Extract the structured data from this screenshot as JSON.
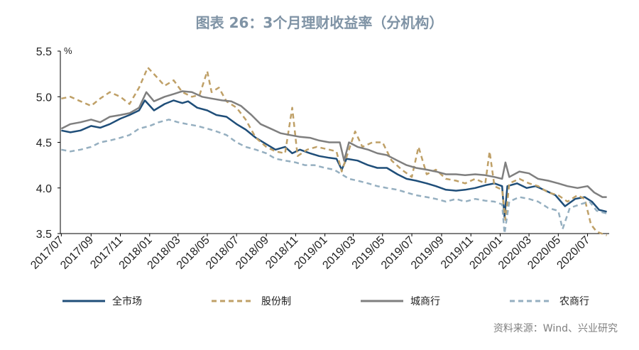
{
  "chart_data": {
    "type": "line",
    "title": "图表 26：3个月理财收益率（分机构）",
    "ylabel": "%",
    "ylim": [
      3.5,
      5.5
    ],
    "yticks": [
      "3.5",
      "4.0",
      "4.5",
      "5.0",
      "5.5"
    ],
    "xlim": [
      "2017-06-29",
      "2020-08-15"
    ],
    "xticks": [
      "2017/07",
      "2017/09",
      "2017/11",
      "2018/01",
      "2018/03",
      "2018/05",
      "2018/07",
      "2018/09",
      "2018/11",
      "2019/01",
      "2019/03",
      "2019/05",
      "2019/07",
      "2019/09",
      "2019/11",
      "2020/01",
      "2020/03",
      "2020/05",
      "2020/07"
    ],
    "grid": false,
    "legend_position": "bottom",
    "series": [
      {
        "name": "全市场",
        "color": "#1f4e79",
        "style": "solid",
        "points": [
          [
            "2017-07-01",
            4.63
          ],
          [
            "2017-07-20",
            4.61
          ],
          [
            "2017-08-10",
            4.63
          ],
          [
            "2017-09-01",
            4.68
          ],
          [
            "2017-09-20",
            4.66
          ],
          [
            "2017-10-10",
            4.7
          ],
          [
            "2017-11-01",
            4.76
          ],
          [
            "2017-11-20",
            4.8
          ],
          [
            "2017-12-10",
            4.85
          ],
          [
            "2017-12-22",
            4.96
          ],
          [
            "2018-01-10",
            4.85
          ],
          [
            "2018-02-01",
            4.92
          ],
          [
            "2018-02-20",
            4.96
          ],
          [
            "2018-03-10",
            4.93
          ],
          [
            "2018-03-22",
            4.95
          ],
          [
            "2018-04-10",
            4.88
          ],
          [
            "2018-05-01",
            4.85
          ],
          [
            "2018-05-20",
            4.8
          ],
          [
            "2018-06-10",
            4.78
          ],
          [
            "2018-07-01",
            4.7
          ],
          [
            "2018-07-20",
            4.64
          ],
          [
            "2018-08-10",
            4.55
          ],
          [
            "2018-09-01",
            4.48
          ],
          [
            "2018-09-20",
            4.42
          ],
          [
            "2018-10-10",
            4.45
          ],
          [
            "2018-10-25",
            4.38
          ],
          [
            "2018-11-10",
            4.42
          ],
          [
            "2018-12-01",
            4.38
          ],
          [
            "2018-12-20",
            4.35
          ],
          [
            "2019-01-10",
            4.33
          ],
          [
            "2019-01-25",
            4.32
          ],
          [
            "2019-02-05",
            4.2
          ],
          [
            "2019-02-15",
            4.32
          ],
          [
            "2019-03-10",
            4.3
          ],
          [
            "2019-04-01",
            4.25
          ],
          [
            "2019-04-20",
            4.22
          ],
          [
            "2019-05-10",
            4.22
          ],
          [
            "2019-06-01",
            4.15
          ],
          [
            "2019-06-20",
            4.1
          ],
          [
            "2019-07-10",
            4.08
          ],
          [
            "2019-08-01",
            4.05
          ],
          [
            "2019-08-20",
            4.02
          ],
          [
            "2019-09-10",
            3.98
          ],
          [
            "2019-10-01",
            3.97
          ],
          [
            "2019-10-20",
            3.98
          ],
          [
            "2019-11-10",
            4.0
          ],
          [
            "2019-12-01",
            4.03
          ],
          [
            "2019-12-20",
            4.05
          ],
          [
            "2020-01-05",
            4.02
          ],
          [
            "2020-01-10",
            3.68
          ],
          [
            "2020-01-16",
            4.02
          ],
          [
            "2020-02-05",
            4.05
          ],
          [
            "2020-02-25",
            4.0
          ],
          [
            "2020-03-15",
            4.02
          ],
          [
            "2020-04-05",
            3.97
          ],
          [
            "2020-04-25",
            3.92
          ],
          [
            "2020-05-15",
            3.8
          ],
          [
            "2020-06-05",
            3.88
          ],
          [
            "2020-06-25",
            3.9
          ],
          [
            "2020-07-10",
            3.85
          ],
          [
            "2020-07-25",
            3.76
          ],
          [
            "2020-08-10",
            3.74
          ]
        ]
      },
      {
        "name": "股份制",
        "color": "#bfa067",
        "style": "dashed",
        "points": [
          [
            "2017-07-01",
            4.98
          ],
          [
            "2017-07-20",
            5.0
          ],
          [
            "2017-08-10",
            4.95
          ],
          [
            "2017-09-01",
            4.9
          ],
          [
            "2017-09-20",
            4.98
          ],
          [
            "2017-10-10",
            5.05
          ],
          [
            "2017-11-01",
            5.0
          ],
          [
            "2017-11-20",
            4.92
          ],
          [
            "2017-12-10",
            5.1
          ],
          [
            "2017-12-28",
            5.32
          ],
          [
            "2018-01-15",
            5.22
          ],
          [
            "2018-02-01",
            5.12
          ],
          [
            "2018-02-20",
            5.18
          ],
          [
            "2018-03-10",
            5.05
          ],
          [
            "2018-03-30",
            5.0
          ],
          [
            "2018-04-15",
            5.02
          ],
          [
            "2018-05-01",
            5.28
          ],
          [
            "2018-05-10",
            5.05
          ],
          [
            "2018-05-25",
            5.1
          ],
          [
            "2018-06-10",
            4.95
          ],
          [
            "2018-07-01",
            4.88
          ],
          [
            "2018-07-20",
            4.75
          ],
          [
            "2018-08-10",
            4.55
          ],
          [
            "2018-09-01",
            4.45
          ],
          [
            "2018-09-20",
            4.4
          ],
          [
            "2018-10-10",
            4.38
          ],
          [
            "2018-10-25",
            4.88
          ],
          [
            "2018-11-05",
            4.35
          ],
          [
            "2018-11-25",
            4.42
          ],
          [
            "2018-12-15",
            4.45
          ],
          [
            "2019-01-10",
            4.42
          ],
          [
            "2019-01-25",
            4.4
          ],
          [
            "2019-02-05",
            4.18
          ],
          [
            "2019-02-20",
            4.42
          ],
          [
            "2019-03-05",
            4.62
          ],
          [
            "2019-03-20",
            4.45
          ],
          [
            "2019-04-10",
            4.5
          ],
          [
            "2019-05-01",
            4.5
          ],
          [
            "2019-05-20",
            4.3
          ],
          [
            "2019-06-10",
            4.2
          ],
          [
            "2019-07-01",
            4.12
          ],
          [
            "2019-07-15",
            4.45
          ],
          [
            "2019-08-01",
            4.15
          ],
          [
            "2019-08-20",
            4.2
          ],
          [
            "2019-09-10",
            4.1
          ],
          [
            "2019-10-01",
            4.08
          ],
          [
            "2019-10-20",
            4.05
          ],
          [
            "2019-11-10",
            4.1
          ],
          [
            "2019-12-01",
            4.05
          ],
          [
            "2019-12-10",
            4.4
          ],
          [
            "2019-12-20",
            4.02
          ],
          [
            "2020-01-05",
            3.98
          ],
          [
            "2020-01-12",
            3.65
          ],
          [
            "2020-01-20",
            4.05
          ],
          [
            "2020-02-10",
            4.1
          ],
          [
            "2020-03-01",
            4.05
          ],
          [
            "2020-03-20",
            4.02
          ],
          [
            "2020-04-10",
            3.95
          ],
          [
            "2020-05-01",
            3.92
          ],
          [
            "2020-05-20",
            3.85
          ],
          [
            "2020-06-10",
            3.92
          ],
          [
            "2020-06-25",
            3.88
          ],
          [
            "2020-07-08",
            3.6
          ],
          [
            "2020-07-20",
            3.52
          ],
          [
            "2020-08-10",
            3.48
          ]
        ]
      },
      {
        "name": "城商行",
        "color": "#7f7f7f",
        "style": "solid",
        "points": [
          [
            "2017-07-01",
            4.65
          ],
          [
            "2017-07-20",
            4.7
          ],
          [
            "2017-08-10",
            4.72
          ],
          [
            "2017-09-01",
            4.75
          ],
          [
            "2017-09-20",
            4.72
          ],
          [
            "2017-10-10",
            4.78
          ],
          [
            "2017-11-01",
            4.8
          ],
          [
            "2017-11-20",
            4.82
          ],
          [
            "2017-12-10",
            4.88
          ],
          [
            "2017-12-25",
            5.05
          ],
          [
            "2018-01-10",
            4.95
          ],
          [
            "2018-02-01",
            5.0
          ],
          [
            "2018-02-20",
            5.03
          ],
          [
            "2018-03-10",
            5.06
          ],
          [
            "2018-03-30",
            5.05
          ],
          [
            "2018-04-20",
            5.0
          ],
          [
            "2018-05-10",
            4.98
          ],
          [
            "2018-06-01",
            4.96
          ],
          [
            "2018-06-20",
            4.95
          ],
          [
            "2018-07-10",
            4.9
          ],
          [
            "2018-08-01",
            4.8
          ],
          [
            "2018-08-20",
            4.7
          ],
          [
            "2018-09-10",
            4.65
          ],
          [
            "2018-10-01",
            4.6
          ],
          [
            "2018-10-20",
            4.58
          ],
          [
            "2018-11-10",
            4.56
          ],
          [
            "2018-12-01",
            4.55
          ],
          [
            "2018-12-20",
            4.52
          ],
          [
            "2019-01-10",
            4.5
          ],
          [
            "2019-02-01",
            4.5
          ],
          [
            "2019-02-10",
            4.3
          ],
          [
            "2019-02-20",
            4.5
          ],
          [
            "2019-03-10",
            4.45
          ],
          [
            "2019-04-01",
            4.42
          ],
          [
            "2019-04-20",
            4.38
          ],
          [
            "2019-05-10",
            4.36
          ],
          [
            "2019-06-01",
            4.3
          ],
          [
            "2019-06-20",
            4.25
          ],
          [
            "2019-07-10",
            4.22
          ],
          [
            "2019-08-01",
            4.2
          ],
          [
            "2019-08-20",
            4.18
          ],
          [
            "2019-09-10",
            4.15
          ],
          [
            "2019-10-01",
            4.15
          ],
          [
            "2019-10-20",
            4.14
          ],
          [
            "2019-11-10",
            4.15
          ],
          [
            "2019-12-01",
            4.14
          ],
          [
            "2019-12-20",
            4.12
          ],
          [
            "2020-01-05",
            4.1
          ],
          [
            "2020-01-12",
            4.28
          ],
          [
            "2020-01-20",
            4.12
          ],
          [
            "2020-02-10",
            4.18
          ],
          [
            "2020-03-01",
            4.16
          ],
          [
            "2020-03-20",
            4.1
          ],
          [
            "2020-04-10",
            4.08
          ],
          [
            "2020-05-01",
            4.05
          ],
          [
            "2020-05-20",
            4.02
          ],
          [
            "2020-06-10",
            4.0
          ],
          [
            "2020-07-01",
            4.02
          ],
          [
            "2020-07-15",
            3.95
          ],
          [
            "2020-08-01",
            3.9
          ],
          [
            "2020-08-10",
            3.9
          ]
        ]
      },
      {
        "name": "农商行",
        "color": "#95afc0",
        "style": "dashed",
        "points": [
          [
            "2017-07-01",
            4.42
          ],
          [
            "2017-07-20",
            4.4
          ],
          [
            "2017-08-10",
            4.42
          ],
          [
            "2017-09-01",
            4.45
          ],
          [
            "2017-09-20",
            4.5
          ],
          [
            "2017-10-10",
            4.52
          ],
          [
            "2017-11-01",
            4.55
          ],
          [
            "2017-11-20",
            4.58
          ],
          [
            "2017-12-10",
            4.65
          ],
          [
            "2018-01-01",
            4.68
          ],
          [
            "2018-01-20",
            4.72
          ],
          [
            "2018-02-10",
            4.75
          ],
          [
            "2018-03-01",
            4.72
          ],
          [
            "2018-03-20",
            4.7
          ],
          [
            "2018-04-10",
            4.68
          ],
          [
            "2018-05-01",
            4.65
          ],
          [
            "2018-05-20",
            4.62
          ],
          [
            "2018-06-10",
            4.58
          ],
          [
            "2018-07-01",
            4.5
          ],
          [
            "2018-07-20",
            4.45
          ],
          [
            "2018-08-10",
            4.42
          ],
          [
            "2018-09-01",
            4.38
          ],
          [
            "2018-09-20",
            4.32
          ],
          [
            "2018-10-10",
            4.3
          ],
          [
            "2018-11-01",
            4.28
          ],
          [
            "2018-11-20",
            4.25
          ],
          [
            "2018-12-10",
            4.25
          ],
          [
            "2019-01-01",
            4.22
          ],
          [
            "2019-01-20",
            4.2
          ],
          [
            "2019-02-05",
            4.15
          ],
          [
            "2019-02-20",
            4.1
          ],
          [
            "2019-03-10",
            4.08
          ],
          [
            "2019-04-01",
            4.05
          ],
          [
            "2019-04-20",
            4.02
          ],
          [
            "2019-05-10",
            4.0
          ],
          [
            "2019-06-01",
            3.98
          ],
          [
            "2019-06-20",
            3.95
          ],
          [
            "2019-07-10",
            3.92
          ],
          [
            "2019-08-01",
            3.9
          ],
          [
            "2019-08-20",
            3.88
          ],
          [
            "2019-09-10",
            3.85
          ],
          [
            "2019-10-01",
            3.88
          ],
          [
            "2019-10-20",
            3.85
          ],
          [
            "2019-11-10",
            3.88
          ],
          [
            "2019-12-01",
            3.86
          ],
          [
            "2019-12-20",
            3.85
          ],
          [
            "2020-01-05",
            3.82
          ],
          [
            "2020-01-10",
            3.5
          ],
          [
            "2020-01-20",
            3.85
          ],
          [
            "2020-02-10",
            3.9
          ],
          [
            "2020-03-01",
            3.88
          ],
          [
            "2020-03-20",
            3.85
          ],
          [
            "2020-04-10",
            3.78
          ],
          [
            "2020-05-01",
            3.75
          ],
          [
            "2020-05-10",
            3.55
          ],
          [
            "2020-05-25",
            3.78
          ],
          [
            "2020-06-15",
            3.82
          ],
          [
            "2020-07-05",
            3.85
          ],
          [
            "2020-07-20",
            3.75
          ],
          [
            "2020-08-10",
            3.72
          ]
        ]
      }
    ]
  },
  "source": "资料来源：Wind、兴业研究"
}
